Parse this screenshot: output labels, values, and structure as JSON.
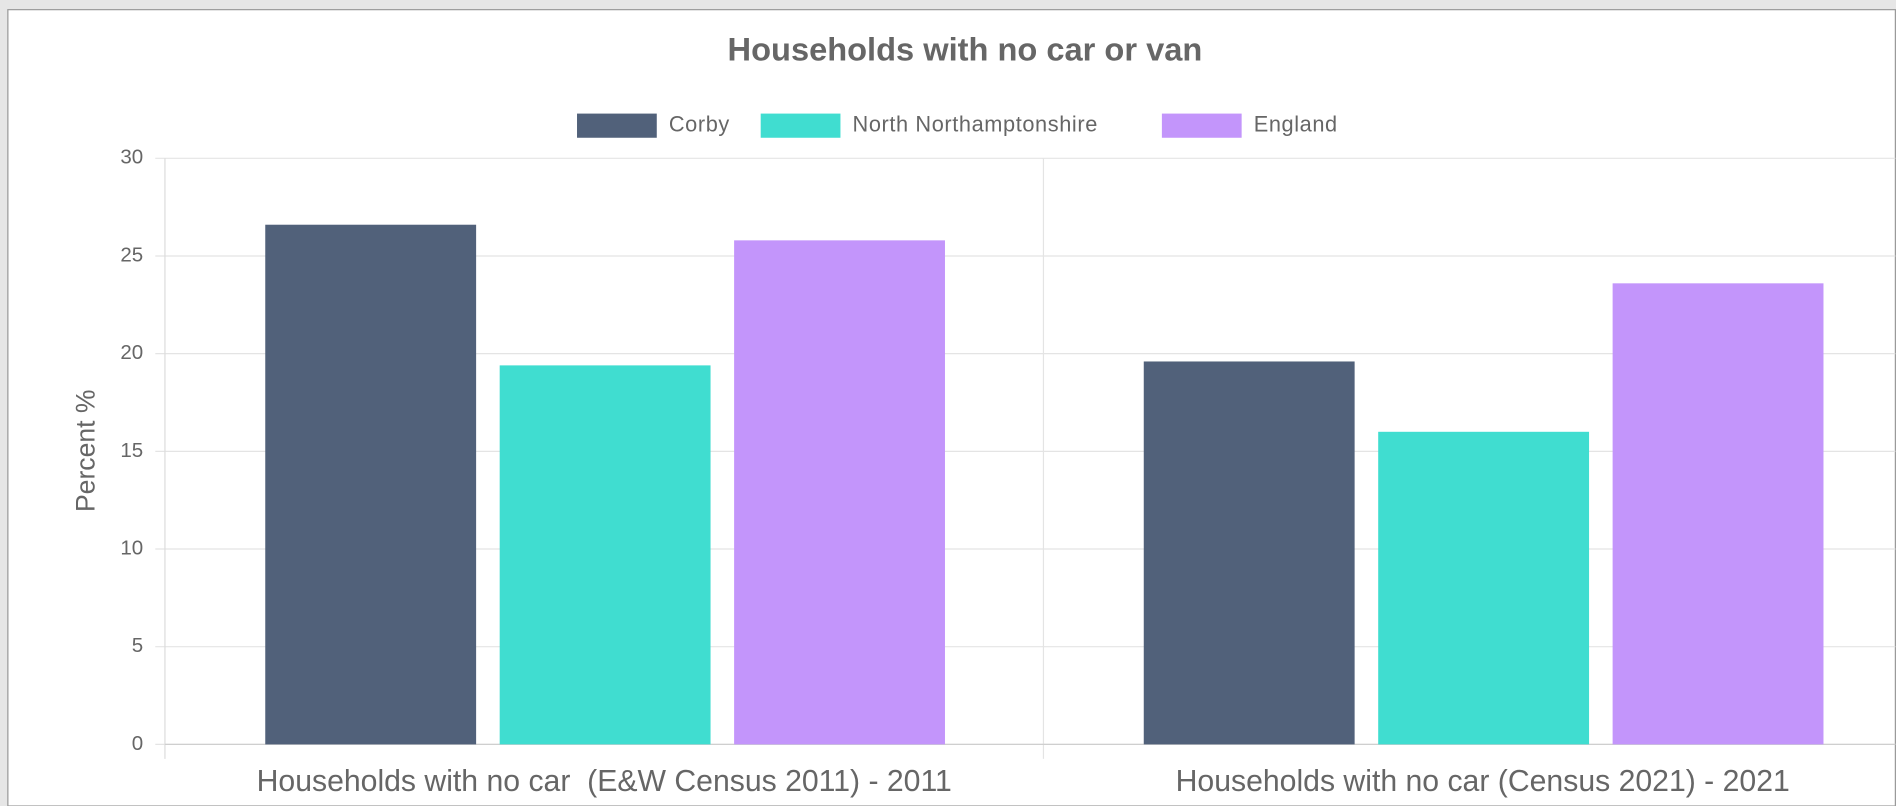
{
  "chart_data": {
    "type": "bar",
    "title": "Households with no car or van",
    "categories": [
      "Households with no car  (E&W Census 2011) - 2011",
      "Households with no car (Census 2021) - 2021"
    ],
    "series": [
      {
        "name": "Corby",
        "color": "#51617a",
        "values": [
          26.6,
          19.6
        ]
      },
      {
        "name": "North Northamptonshire",
        "color": "#40ddd0",
        "values": [
          19.4,
          16.0
        ]
      },
      {
        "name": "England",
        "color": "#c395fb",
        "values": [
          25.8,
          23.6
        ]
      }
    ],
    "y_label": "Percent %",
    "ylim": [
      0,
      30
    ],
    "yticks": [
      0,
      5,
      10,
      15,
      20,
      25,
      30
    ],
    "grid": true,
    "legend": "top"
  }
}
